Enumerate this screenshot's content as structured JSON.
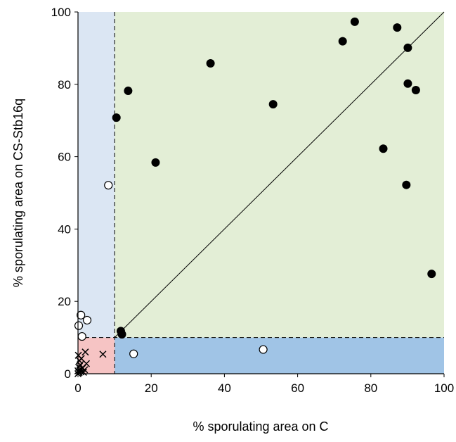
{
  "chart_data": {
    "type": "scatter",
    "title": "",
    "xlabel": "% sporulating area on C",
    "ylabel": "% sporulating area on CS-Stb16q",
    "xlim": [
      0,
      100
    ],
    "ylim": [
      0,
      100
    ],
    "x_ticks": [
      0,
      20,
      40,
      60,
      80,
      100
    ],
    "y_ticks": [
      0,
      20,
      40,
      60,
      80,
      100
    ],
    "grid": false,
    "legend": "none",
    "threshold": 10,
    "reference_line": "y = x",
    "regions": [
      {
        "name": "green",
        "x": [
          10,
          100
        ],
        "y": [
          10,
          100
        ],
        "color": "#e3eed6"
      },
      {
        "name": "light-blue",
        "x": [
          0,
          10
        ],
        "y": [
          10,
          100
        ],
        "color": "#dbe6f3"
      },
      {
        "name": "blue",
        "x": [
          10,
          100
        ],
        "y": [
          0,
          10
        ],
        "color": "#a0c4e6"
      },
      {
        "name": "red",
        "x": [
          0,
          10
        ],
        "y": [
          0,
          10
        ],
        "color": "#f6c4c4"
      }
    ],
    "series": [
      {
        "marker": "filled-circle",
        "color": "#000000",
        "points": [
          [
            10.5,
            70.8
          ],
          [
            13.7,
            78.2
          ],
          [
            21.2,
            58.4
          ],
          [
            36.2,
            85.8
          ],
          [
            53.3,
            74.5
          ],
          [
            72.3,
            91.9
          ],
          [
            75.6,
            97.3
          ],
          [
            83.4,
            62.2
          ],
          [
            87.2,
            95.7
          ],
          [
            89.7,
            52.2
          ],
          [
            90.1,
            90.1
          ],
          [
            90.1,
            80.2
          ],
          [
            92.3,
            78.4
          ],
          [
            96.6,
            27.6
          ],
          [
            11.7,
            11.8
          ],
          [
            12.0,
            10.9
          ]
        ]
      },
      {
        "marker": "open-circle",
        "color": "#000000",
        "points": [
          [
            8.3,
            52.1
          ],
          [
            0.8,
            16.2
          ],
          [
            2.5,
            14.8
          ],
          [
            0.2,
            13.3
          ],
          [
            1.1,
            10.3
          ],
          [
            15.2,
            5.5
          ],
          [
            50.6,
            6.7
          ]
        ]
      },
      {
        "marker": "cross",
        "color": "#000000",
        "points": [
          [
            0,
            0
          ],
          [
            0.3,
            0.3
          ],
          [
            0.5,
            1.0
          ],
          [
            0.8,
            0.5
          ],
          [
            0.2,
            1.8
          ],
          [
            0.6,
            2.5
          ],
          [
            1.2,
            1.5
          ],
          [
            1.5,
            0.4
          ],
          [
            0.4,
            3.6
          ],
          [
            0.9,
            4.2
          ],
          [
            0.1,
            5.1
          ],
          [
            2.0,
            6.0
          ],
          [
            2.3,
            2.8
          ],
          [
            1.8,
            1.1
          ],
          [
            6.8,
            5.4
          ],
          [
            0.0,
            0.8
          ]
        ]
      }
    ]
  }
}
